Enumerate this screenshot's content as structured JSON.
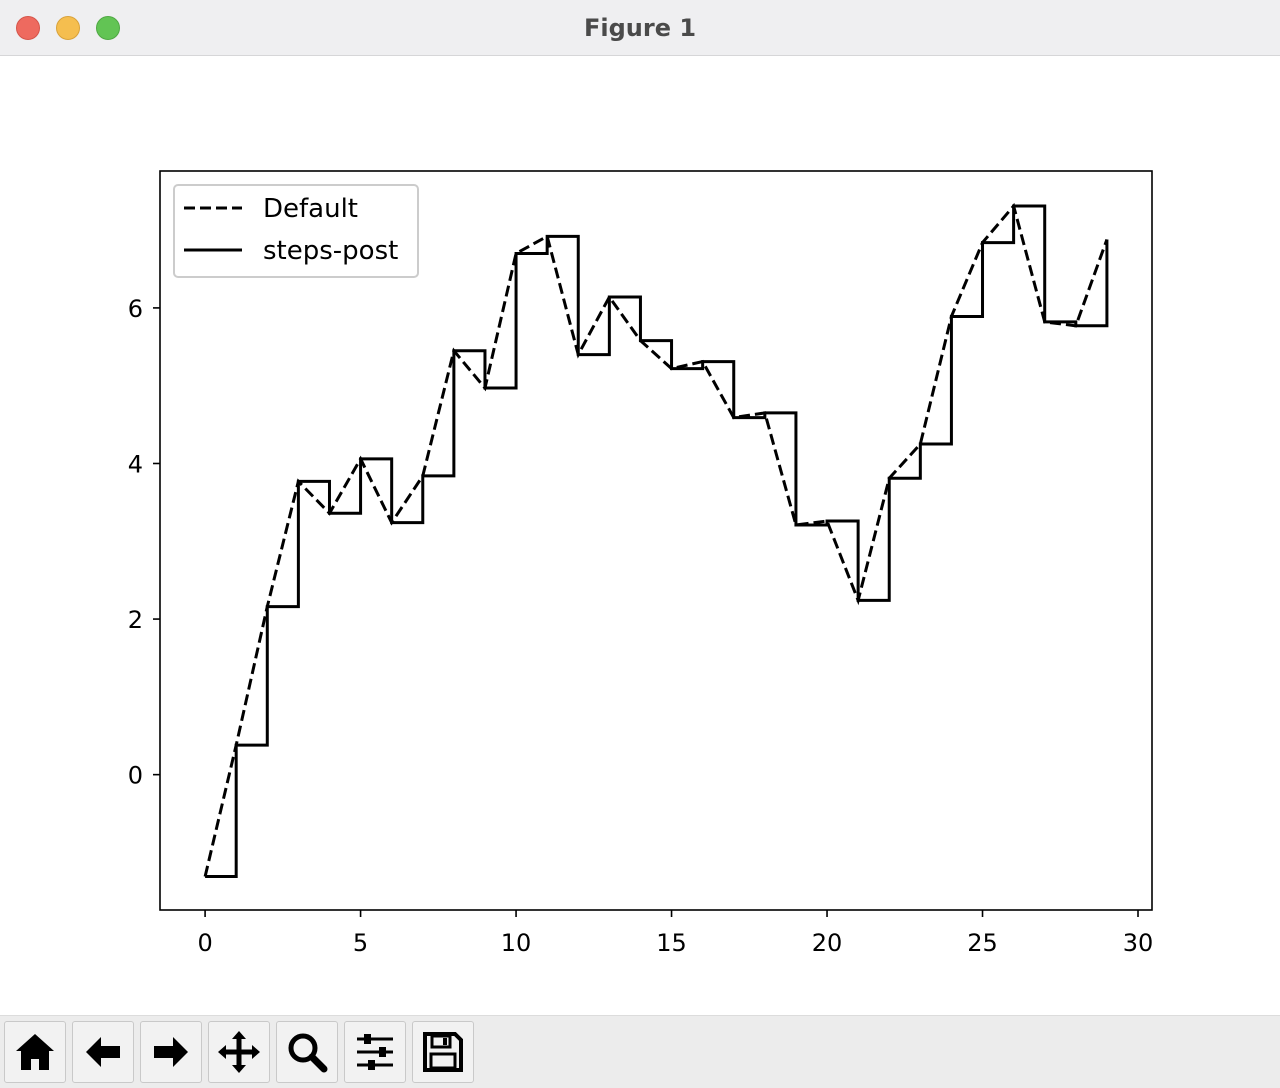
{
  "window": {
    "title": "Figure 1"
  },
  "toolbar": {
    "buttons": [
      {
        "name": "home",
        "icon": "home-icon"
      },
      {
        "name": "back",
        "icon": "arrow-left-icon"
      },
      {
        "name": "forward",
        "icon": "arrow-right-icon"
      },
      {
        "name": "pan",
        "icon": "move-icon"
      },
      {
        "name": "zoom",
        "icon": "magnifier-icon"
      },
      {
        "name": "configure-subplots",
        "icon": "sliders-icon"
      },
      {
        "name": "save",
        "icon": "floppy-disk-icon"
      }
    ]
  },
  "chart_data": {
    "type": "line",
    "title": "",
    "xlabel": "",
    "ylabel": "",
    "xlim": [
      -1.45,
      30.45
    ],
    "ylim": [
      -1.74,
      7.76
    ],
    "xticks": [
      0,
      5,
      10,
      15,
      20,
      25,
      30
    ],
    "yticks": [
      0,
      2,
      4,
      6
    ],
    "grid": false,
    "legend": {
      "position": "top-left",
      "entries": [
        "Default",
        "steps-post"
      ]
    },
    "x": [
      0,
      1,
      2,
      3,
      4,
      5,
      6,
      7,
      8,
      9,
      10,
      11,
      12,
      13,
      14,
      15,
      16,
      17,
      18,
      19,
      20,
      21,
      22,
      23,
      24,
      25,
      26,
      27,
      28,
      29
    ],
    "series": [
      {
        "name": "Default",
        "linestyle": "dashed",
        "drawstyle": "default",
        "color": "#000000",
        "values": [
          -1.31,
          0.38,
          2.16,
          3.77,
          3.36,
          4.06,
          3.24,
          3.84,
          5.45,
          4.97,
          6.7,
          6.92,
          5.4,
          6.14,
          5.58,
          5.22,
          5.31,
          4.59,
          4.65,
          3.21,
          3.26,
          2.24,
          3.81,
          4.25,
          5.89,
          6.84,
          7.31,
          5.82,
          5.77,
          6.88
        ]
      },
      {
        "name": "steps-post",
        "linestyle": "solid",
        "drawstyle": "steps-post",
        "color": "#000000",
        "values": [
          -1.31,
          0.38,
          2.16,
          3.77,
          3.36,
          4.06,
          3.24,
          3.84,
          5.45,
          4.97,
          6.7,
          6.92,
          5.4,
          6.14,
          5.58,
          5.22,
          5.31,
          4.59,
          4.65,
          3.21,
          3.26,
          2.24,
          3.81,
          4.25,
          5.89,
          6.84,
          7.31,
          5.82,
          5.77,
          6.88
        ]
      }
    ]
  }
}
